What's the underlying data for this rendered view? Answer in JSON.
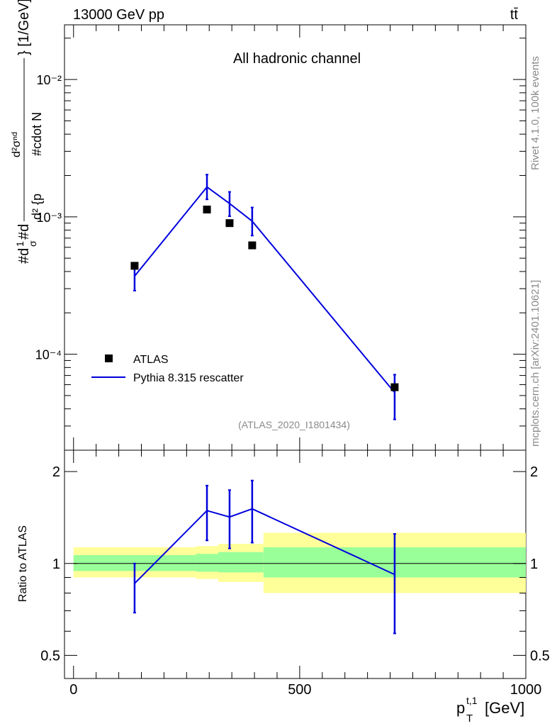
{
  "header": {
    "energy_label": "13000 GeV pp",
    "process_label": "tt̄",
    "rivet_label": "Rivet 4.1.0,  100k events",
    "source_label": "mcplots.cern.ch [arXiv:2401.10621]"
  },
  "chart_data": [
    {
      "type": "line",
      "role": "main",
      "title": "All hadronic channel",
      "analysis_label": "(ATLAS_2020_I1801434)",
      "ylabel": "#d¹/σ #d d²σ/d²{p_T^{t,1} #cdot N_jets} [1/GeV]",
      "ylabel_main": "#d",
      "ylabel_frac_top": "1",
      "ylabel_frac_bottom": "σ",
      "ylabel_mid": "#d",
      "ylabel_num": "d²σⁿᵈ",
      "ylabel_den": "d² {p",
      "ylabel_den2": "#cdot N",
      "ylabel_unit": "} [1/GeV]",
      "yscale": "log",
      "ylim": [
        2e-05,
        0.025
      ],
      "xlim": [
        -20,
        1000
      ],
      "y_ticks": [
        {
          "value": 0.01,
          "label": "10⁻²"
        },
        {
          "value": 0.001,
          "label": "10⁻³"
        },
        {
          "value": 0.0001,
          "label": "10⁻⁴"
        }
      ],
      "legend": [
        {
          "name": "ATLAS",
          "marker": "square",
          "color": "#000000"
        },
        {
          "name": "Pythia 8.315 rescatter",
          "marker": "line",
          "color": "#0000dd"
        }
      ],
      "data_points": {
        "name": "ATLAS",
        "x": [
          135,
          295,
          345,
          395,
          710
        ],
        "y": [
          0.00044,
          0.00113,
          0.0009,
          0.00062,
          5.75e-05
        ]
      },
      "mc_series": {
        "name": "Pythia 8.315 rescatter",
        "x": [
          135,
          295,
          345,
          395,
          710
        ],
        "y": [
          0.00037,
          0.00165,
          0.00125,
          0.00093,
          5.25e-05
        ],
        "err_low": [
          0.00029,
          0.00134,
          0.00101,
          0.00073,
          3.35e-05
        ],
        "err_high": [
          0.00045,
          0.00203,
          0.00152,
          0.00117,
          7.1e-05
        ]
      }
    },
    {
      "type": "line",
      "role": "ratio",
      "ylabel": "Ratio to ATLAS",
      "xlabel": "p_T^{t,1} [GeV]",
      "xlabel_main": "p",
      "xlabel_sub": "T",
      "xlabel_sup": "t,1",
      "xlabel_unit": "[GeV]",
      "yscale": "log",
      "ylim": [
        0.42,
        2.35
      ],
      "xlim": [
        -20,
        1000
      ],
      "x_ticks": [
        {
          "value": 0,
          "label": "0"
        },
        {
          "value": 500,
          "label": "500"
        },
        {
          "value": 1000,
          "label": "1000"
        }
      ],
      "y_ticks": [
        {
          "value": 2,
          "label": "2"
        },
        {
          "value": 1,
          "label": "1"
        },
        {
          "value": 0.5,
          "label": "0.5"
        }
      ],
      "bands": [
        {
          "x0": 0,
          "x1": 270,
          "yel_lo": 0.9,
          "yel_hi": 1.13,
          "grn_lo": 0.945,
          "grn_hi": 1.065
        },
        {
          "x0": 270,
          "x1": 320,
          "yel_lo": 0.89,
          "yel_hi": 1.14,
          "grn_lo": 0.94,
          "grn_hi": 1.075
        },
        {
          "x0": 320,
          "x1": 420,
          "yel_lo": 0.87,
          "yel_hi": 1.16,
          "grn_lo": 0.935,
          "grn_hi": 1.09
        },
        {
          "x0": 420,
          "x1": 1000,
          "yel_lo": 0.8,
          "yel_hi": 1.26,
          "grn_lo": 0.9,
          "grn_hi": 1.13
        }
      ],
      "mc_series": {
        "name": "Pythia 8.315 rescatter",
        "x": [
          135,
          295,
          345,
          395,
          710
        ],
        "y": [
          0.86,
          1.49,
          1.42,
          1.51,
          0.92
        ],
        "err_low": [
          0.69,
          1.19,
          1.12,
          1.17,
          0.59
        ],
        "err_high": [
          1.0,
          1.8,
          1.74,
          1.87,
          1.25
        ]
      }
    }
  ]
}
